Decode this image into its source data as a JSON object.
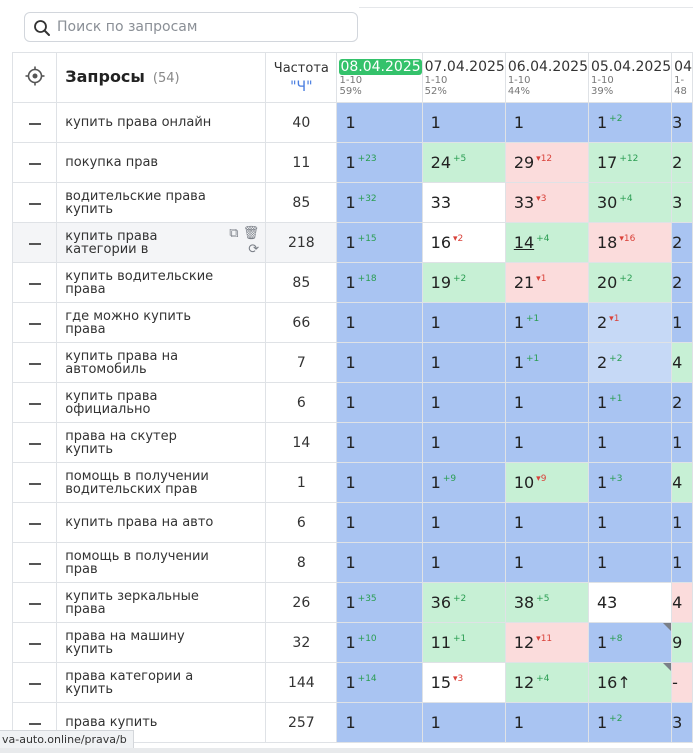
{
  "search": {
    "placeholder": "Поиск по запросам"
  },
  "header": {
    "queries_title": "Запросы",
    "queries_count": "(54)",
    "freq_title": "Частота",
    "freq_type": "\"Ч\"",
    "dates": [
      {
        "date": "08.04.2025",
        "range": "1-10",
        "pct": "59%",
        "current": true
      },
      {
        "date": "07.04.2025",
        "range": "1-10",
        "pct": "52%"
      },
      {
        "date": "06.04.2025",
        "range": "1-10",
        "pct": "44%"
      },
      {
        "date": "05.04.2025",
        "range": "1-10",
        "pct": "39%"
      },
      {
        "date": "04",
        "range": "1-",
        "pct": "48"
      }
    ]
  },
  "rows": [
    {
      "query": "купить права онлайн",
      "freq": "40",
      "cells": [
        [
          "1",
          "",
          "blue"
        ],
        [
          "1",
          "",
          "blue"
        ],
        [
          "1",
          "",
          "blue"
        ],
        [
          "1",
          "+2",
          "blue"
        ],
        [
          "3",
          "",
          "blue"
        ]
      ]
    },
    {
      "query": "покупка прав",
      "freq": "11",
      "cells": [
        [
          "1",
          "+23",
          "blue"
        ],
        [
          "24",
          "+5",
          "green"
        ],
        [
          "29",
          "-12",
          "pink"
        ],
        [
          "17",
          "+12",
          "green"
        ],
        [
          "2",
          "",
          "green"
        ]
      ]
    },
    {
      "query": "водительские права купить",
      "freq": "85",
      "cells": [
        [
          "1",
          "+32",
          "blue"
        ],
        [
          "33",
          "",
          "white"
        ],
        [
          "33",
          "-3",
          "pink"
        ],
        [
          "30",
          "+4",
          "green"
        ],
        [
          "3",
          "",
          "green"
        ]
      ]
    },
    {
      "query": "купить права категории в",
      "freq": "218",
      "cells": [
        [
          "1",
          "+15",
          "blue"
        ],
        [
          "16",
          "-2",
          "white"
        ],
        [
          "14",
          "+4",
          "green"
        ],
        [
          "18",
          "-16",
          "pink"
        ],
        [
          "2",
          "",
          "blue"
        ]
      ],
      "highlight": true
    },
    {
      "query": "купить водительские права",
      "freq": "85",
      "cells": [
        [
          "1",
          "+18",
          "blue"
        ],
        [
          "19",
          "+2",
          "green"
        ],
        [
          "21",
          "-1",
          "pink"
        ],
        [
          "20",
          "+2",
          "green"
        ],
        [
          "2",
          "",
          "blue"
        ]
      ]
    },
    {
      "query": "где можно купить права",
      "freq": "66",
      "cells": [
        [
          "1",
          "",
          "blue"
        ],
        [
          "1",
          "",
          "blue"
        ],
        [
          "1",
          "+1",
          "blue"
        ],
        [
          "2",
          "-1",
          "lblue"
        ],
        [
          "1",
          "",
          "blue"
        ]
      ]
    },
    {
      "query": "купить права на автомобиль",
      "freq": "7",
      "cells": [
        [
          "1",
          "",
          "blue"
        ],
        [
          "1",
          "",
          "blue"
        ],
        [
          "1",
          "+1",
          "blue"
        ],
        [
          "2",
          "+2",
          "lblue"
        ],
        [
          "4",
          "",
          "green"
        ]
      ]
    },
    {
      "query": "купить права официально",
      "freq": "6",
      "cells": [
        [
          "1",
          "",
          "blue"
        ],
        [
          "1",
          "",
          "blue"
        ],
        [
          "1",
          "",
          "blue"
        ],
        [
          "1",
          "+1",
          "blue"
        ],
        [
          "2",
          "",
          "blue"
        ]
      ]
    },
    {
      "query": "права на скутер купить",
      "freq": "14",
      "cells": [
        [
          "1",
          "",
          "blue"
        ],
        [
          "1",
          "",
          "blue"
        ],
        [
          "1",
          "",
          "blue"
        ],
        [
          "1",
          "",
          "blue"
        ],
        [
          "1",
          "",
          "blue"
        ]
      ]
    },
    {
      "query": "помощь в получении водительских прав",
      "freq": "1",
      "cells": [
        [
          "1",
          "",
          "blue"
        ],
        [
          "1",
          "+9",
          "blue"
        ],
        [
          "10",
          "-9",
          "green"
        ],
        [
          "1",
          "+3",
          "blue"
        ],
        [
          "4",
          "",
          "green"
        ]
      ]
    },
    {
      "query": "купить права на авто",
      "freq": "6",
      "cells": [
        [
          "1",
          "",
          "blue"
        ],
        [
          "1",
          "",
          "blue"
        ],
        [
          "1",
          "",
          "blue"
        ],
        [
          "1",
          "",
          "blue"
        ],
        [
          "1",
          "",
          "blue"
        ]
      ]
    },
    {
      "query": "помощь в получении прав",
      "freq": "8",
      "cells": [
        [
          "1",
          "",
          "blue"
        ],
        [
          "1",
          "",
          "blue"
        ],
        [
          "1",
          "",
          "blue"
        ],
        [
          "1",
          "",
          "blue"
        ],
        [
          "1",
          "",
          "blue"
        ]
      ]
    },
    {
      "query": "купить зеркальные права",
      "freq": "26",
      "cells": [
        [
          "1",
          "+35",
          "blue"
        ],
        [
          "36",
          "+2",
          "green"
        ],
        [
          "38",
          "+5",
          "green"
        ],
        [
          "43",
          "",
          "white"
        ],
        [
          "4",
          "",
          "pink"
        ]
      ]
    },
    {
      "query": "права на машину купить",
      "freq": "32",
      "cells": [
        [
          "1",
          "+10",
          "blue"
        ],
        [
          "11",
          "+1",
          "green"
        ],
        [
          "12",
          "-11",
          "pink"
        ],
        [
          "1",
          "+8",
          "blue"
        ],
        [
          "9",
          "",
          "green"
        ]
      ]
    },
    {
      "query": "права категории а купить",
      "freq": "144",
      "cells": [
        [
          "1",
          "+14",
          "blue"
        ],
        [
          "15",
          "-3",
          "white"
        ],
        [
          "12",
          "+4",
          "green"
        ],
        [
          "16↑",
          "",
          "green"
        ],
        [
          "-",
          "",
          "pink"
        ]
      ]
    },
    {
      "query": "права купить",
      "freq": "257",
      "cells": [
        [
          "1",
          "",
          "blue"
        ],
        [
          "1",
          "",
          "blue"
        ],
        [
          "1",
          "",
          "blue"
        ],
        [
          "1",
          "+2",
          "blue"
        ],
        [
          "3",
          "",
          "blue"
        ]
      ]
    }
  ],
  "status_url": "va-auto.online/prava/b",
  "colors": {
    "blue": "#a9c4f2",
    "green": "#c7f0d5",
    "pink": "#fbdcdc",
    "current_date": "#34c26b"
  }
}
